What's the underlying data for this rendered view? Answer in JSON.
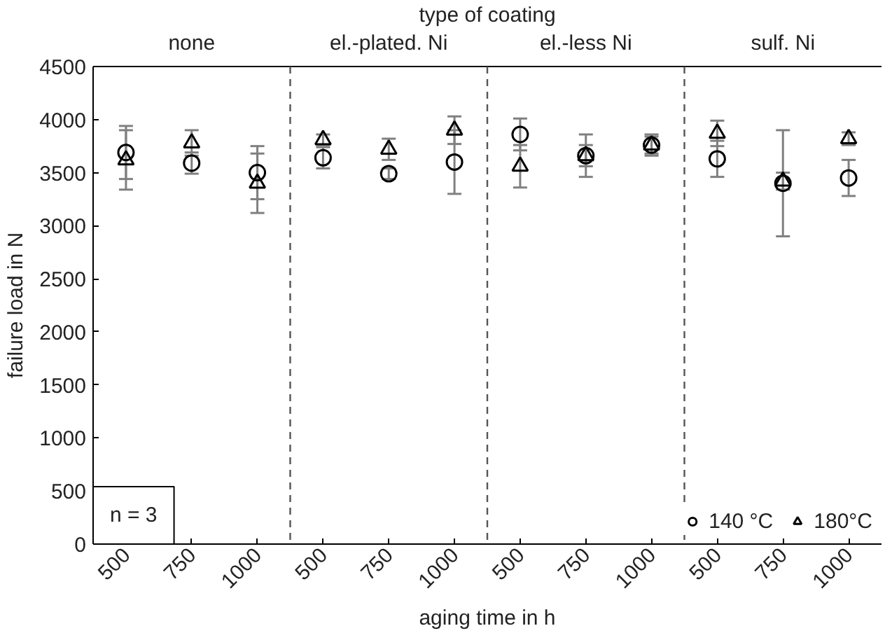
{
  "chart_data": {
    "type": "scatter",
    "title": "type of coating",
    "xlabel": "aging time in h",
    "ylabel": "failure load in N",
    "categories": [
      "500",
      "750",
      "1000",
      "500",
      "750",
      "1000",
      "500",
      "750",
      "1000",
      "500",
      "750",
      "1000"
    ],
    "ylim": [
      0,
      4500
    ],
    "yticks": [
      0,
      500,
      1000,
      1500,
      2000,
      2500,
      3000,
      3500,
      4000,
      4500
    ],
    "series": [
      {
        "name": "140 °C",
        "color": "#000000",
        "marker": "circle",
        "values": [
          3690,
          3590,
          3500,
          3640,
          3490,
          3600,
          3860,
          3660,
          3760,
          3630,
          3400,
          3450
        ],
        "errors": [
          250,
          100,
          250,
          100,
          50,
          300,
          150,
          200,
          100,
          170,
          500,
          170
        ]
      },
      {
        "name": "180°C",
        "color": "#000000",
        "marker": "triangle",
        "values": [
          3620,
          3780,
          3400,
          3810,
          3720,
          3900,
          3560,
          3660,
          3760,
          3870,
          3420,
          3820
        ],
        "errors": [
          280,
          120,
          280,
          50,
          100,
          130,
          200,
          100,
          80,
          120,
          80,
          60
        ]
      }
    ],
    "annotations": [
      "none",
      "el.-plated. Ni",
      "el.-less Ni",
      "sulf. Ni",
      "n = 3"
    ],
    "legend": "bottom right",
    "grid": false
  }
}
